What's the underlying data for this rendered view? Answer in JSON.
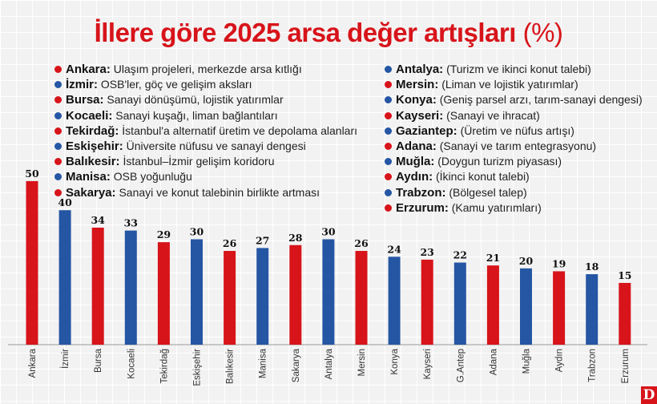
{
  "chart_data": {
    "type": "bar",
    "title": "İllere göre 2025 arsa değer artışları",
    "title_unit": "(%)",
    "categories": [
      "Ankara",
      "İzmir",
      "Bursa",
      "Kocaeli",
      "Tekirdağ",
      "Eskişehir",
      "Balıkesir",
      "Manisa",
      "Sakarya",
      "Antalya",
      "Mersin",
      "Konya",
      "Kayseri",
      "G.Antep",
      "Adana",
      "Muğla",
      "Aydın",
      "Trabzon",
      "Erzurum"
    ],
    "values": [
      50,
      40,
      34,
      33,
      29,
      30,
      26,
      27,
      28,
      30,
      26,
      24,
      23,
      22,
      21,
      20,
      19,
      18,
      15
    ],
    "bar_colors": [
      "red",
      "blue",
      "red",
      "blue",
      "red",
      "blue",
      "red",
      "blue",
      "red",
      "blue",
      "red",
      "blue",
      "red",
      "blue",
      "red",
      "blue",
      "red",
      "blue",
      "red"
    ],
    "colors": {
      "red": "#d7141a",
      "blue": "#2556a4"
    },
    "data_labels": true,
    "grid": true
  },
  "legend": {
    "left": [
      {
        "city": "Ankara:",
        "reason": "Ulaşım projeleri, merkezde arsa kıtlığı",
        "color": "red"
      },
      {
        "city": "İzmir:",
        "reason": "OSB'ler, göç ve gelişim aksları",
        "color": "blue"
      },
      {
        "city": "Bursa:",
        "reason": "Sanayi dönüşümü, lojistik yatırımlar",
        "color": "red"
      },
      {
        "city": "Kocaeli:",
        "reason": "Sanayi kuşağı, liman bağlantıları",
        "color": "blue"
      },
      {
        "city": "Tekirdağ:",
        "reason": "İstanbul'a alternatif üretim ve depolama alanları",
        "color": "red"
      },
      {
        "city": "Eskişehir:",
        "reason": "Üniversite nüfusu ve sanayi dengesi",
        "color": "blue"
      },
      {
        "city": "Balıkesir:",
        "reason": "İstanbul–İzmir gelişim koridoru",
        "color": "red"
      },
      {
        "city": "Manisa:",
        "reason": "OSB yoğunluğu",
        "color": "blue"
      },
      {
        "city": "Sakarya:",
        "reason": "Sanayi ve konut talebinin birlikte artması",
        "color": "red"
      }
    ],
    "right": [
      {
        "city": "Antalya:",
        "reason": "(Turizm ve ikinci konut talebi)",
        "color": "blue"
      },
      {
        "city": "Mersin:",
        "reason": "(Liman ve lojistik yatırımlar)",
        "color": "red"
      },
      {
        "city": "Konya:",
        "reason": "(Geniş parsel arzı, tarım-sanayi dengesi)",
        "color": "blue"
      },
      {
        "city": "Kayseri:",
        "reason": "(Sanayi ve ihracat)",
        "color": "red"
      },
      {
        "city": "Gaziantep:",
        "reason": "(Üretim ve nüfus artışı)",
        "color": "blue"
      },
      {
        "city": "Adana:",
        "reason": "(Sanayi ve tarım entegrasyonu)",
        "color": "red"
      },
      {
        "city": "Muğla:",
        "reason": "(Doygun turizm piyasası)",
        "color": "blue"
      },
      {
        "city": "Aydın:",
        "reason": "(İkinci konut talebi)",
        "color": "red"
      },
      {
        "city": "Trabzon:",
        "reason": "(Bölgesel talep)",
        "color": "blue"
      },
      {
        "city": "Erzurum:",
        "reason": "(Kamu yatırımları)",
        "color": "red"
      }
    ]
  },
  "logo": {
    "text": "D"
  }
}
